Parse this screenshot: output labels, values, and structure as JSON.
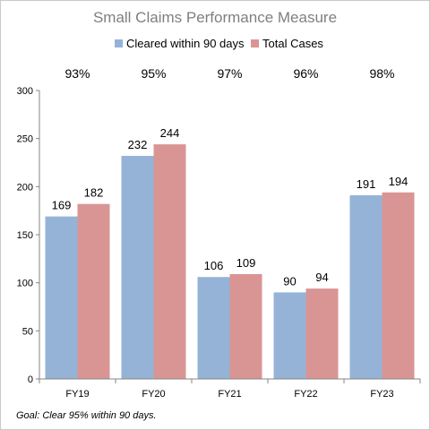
{
  "chart_data": {
    "type": "bar",
    "title": "Small Claims Performance Measure",
    "categories": [
      "FY19",
      "FY20",
      "FY21",
      "FY22",
      "FY23"
    ],
    "series": [
      {
        "name": "Cleared within 90 days",
        "values": [
          169,
          232,
          106,
          90,
          191
        ],
        "color": "#95b3d7"
      },
      {
        "name": "Total Cases",
        "values": [
          182,
          244,
          109,
          94,
          194
        ],
        "color": "#d99594"
      }
    ],
    "percentages": [
      "93%",
      "95%",
      "97%",
      "96%",
      "98%"
    ],
    "ylim": [
      0,
      300
    ],
    "yticks": [
      0,
      50,
      100,
      150,
      200,
      250,
      300
    ],
    "xlabel": "",
    "ylabel": "",
    "legend": "top-center",
    "grid": false,
    "footnote": "Goal:  Clear 95% within 90 days."
  }
}
